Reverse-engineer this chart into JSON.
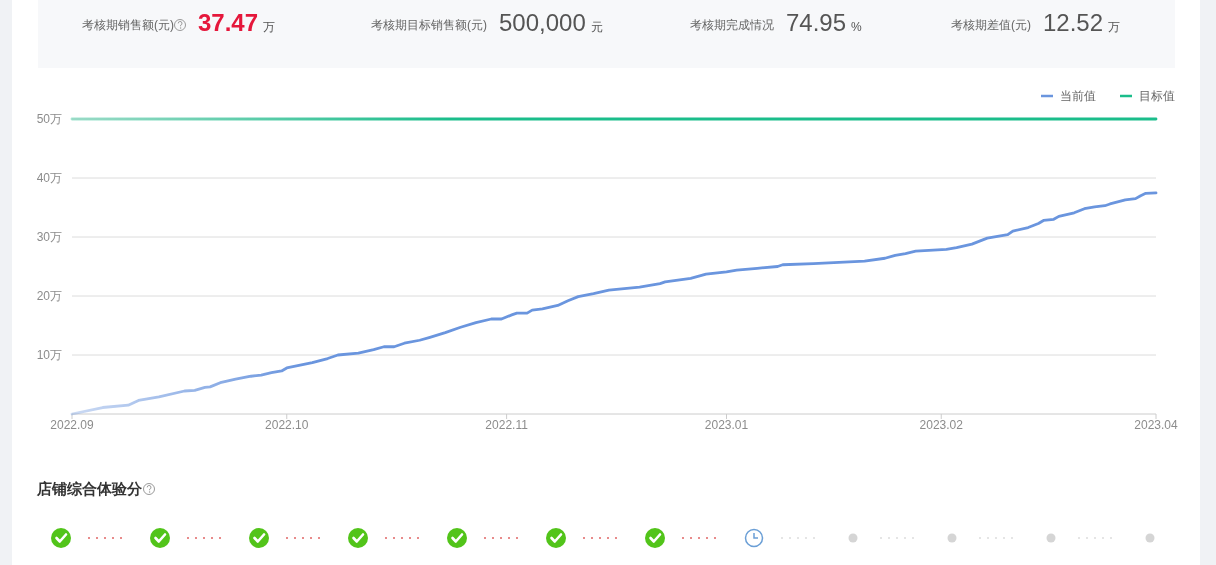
{
  "chart_data": [
    {
      "type": "other",
      "annotations": [
        "考核期销售额(元)",
        "37.47",
        "万",
        "考核期目标销售额(元)",
        "500,000",
        "元",
        "考核期完成情况",
        "74.95",
        "%",
        "考核期差值(元)",
        "12.52",
        "万"
      ]
    },
    {
      "type": "line",
      "x": [
        "2022-09-01",
        "2022-09-07",
        "2022-09-12",
        "2022-09-14",
        "2022-09-18",
        "2022-09-23",
        "2022-09-25",
        "2022-09-27",
        "2022-09-28",
        "2022-09-30",
        "2022-10-03",
        "2022-10-06",
        "2022-10-08",
        "2022-10-10",
        "2022-10-12",
        "2022-10-13",
        "2022-10-18",
        "2022-10-21",
        "2022-10-23",
        "2022-10-27",
        "2022-10-30",
        "2022-11-01",
        "2022-11-03",
        "2022-11-05",
        "2022-11-08",
        "2022-11-10",
        "2022-11-13",
        "2022-11-16",
        "2022-11-19",
        "2022-11-22",
        "2022-11-24",
        "2022-11-26",
        "2022-11-27",
        "2022-11-29",
        "2022-11-30",
        "2022-12-02",
        "2022-12-05",
        "2022-12-07",
        "2022-12-09",
        "2022-12-12",
        "2022-12-15",
        "2022-12-21",
        "2022-12-25",
        "2022-12-26",
        "2022-12-31",
        "2023-01-03",
        "2023-01-07",
        "2023-01-09",
        "2023-01-13",
        "2023-01-17",
        "2023-01-18",
        "2023-01-24",
        "2023-01-29",
        "2023-02-03",
        "2023-02-07",
        "2023-02-09",
        "2023-02-11",
        "2023-02-13",
        "2023-02-19",
        "2023-02-21",
        "2023-02-24",
        "2023-02-27",
        "2023-03-01",
        "2023-03-03",
        "2023-03-04",
        "2023-03-07",
        "2023-03-09",
        "2023-03-10",
        "2023-03-12",
        "2023-03-13",
        "2023-03-16",
        "2023-03-18",
        "2023-03-20",
        "2023-03-22",
        "2023-03-23",
        "2023-03-26",
        "2023-03-28",
        "2023-03-29",
        "2023-03-30",
        "2023-04-01"
      ],
      "series": [
        {
          "name": "当前值",
          "color": "#6a95de",
          "values": [
            0,
            1.1,
            1.5,
            2.3,
            2.9,
            3.9,
            4.0,
            4.5,
            4.6,
            5.3,
            5.9,
            6.4,
            6.6,
            7.0,
            7.3,
            7.8,
            8.7,
            9.4,
            10.0,
            10.3,
            10.9,
            11.4,
            11.4,
            12.0,
            12.5,
            13.0,
            13.8,
            14.7,
            15.5,
            16.1,
            16.1,
            16.8,
            17.1,
            17.1,
            17.6,
            17.8,
            18.4,
            19.2,
            19.9,
            20.4,
            21.0,
            21.5,
            22.1,
            22.4,
            23.0,
            23.7,
            24.1,
            24.4,
            24.7,
            25.0,
            25.3,
            25.5,
            25.7,
            25.9,
            26.4,
            26.9,
            27.2,
            27.6,
            27.9,
            28.2,
            28.8,
            29.8,
            30.1,
            30.4,
            31.0,
            31.6,
            32.3,
            32.8,
            33.0,
            33.5,
            34.1,
            34.8,
            35.1,
            35.3,
            35.6,
            36.3,
            36.5,
            37.0,
            37.4,
            37.47
          ]
        }
      ],
      "ref_lines": [
        {
          "axis": "y",
          "value": 50,
          "label": "目标值",
          "color": "#1bbd8b"
        }
      ],
      "xlim": [
        "2022-09-01",
        "2023-04-01"
      ],
      "xticks": [
        {
          "value": "2022-09-01",
          "label": "2022.09"
        },
        {
          "value": "2022-10-13",
          "label": "2022.10"
        },
        {
          "value": "2022-11-25",
          "label": "2022.11"
        },
        {
          "value": "2023-01-07",
          "label": "2023.01"
        },
        {
          "value": "2023-02-18",
          "label": "2023.02"
        },
        {
          "value": "2023-04-01",
          "label": "2023.04"
        }
      ],
      "ylim": [
        0,
        50
      ],
      "yticks": [
        {
          "value": 10,
          "label": "10万"
        },
        {
          "value": 20,
          "label": "20万"
        },
        {
          "value": 30,
          "label": "30万"
        },
        {
          "value": 40,
          "label": "40万"
        },
        {
          "value": 50,
          "label": "50万"
        }
      ],
      "grid": "y",
      "legend": "top right",
      "line_style": "solid"
    },
    {
      "type": "other",
      "title": "店铺综合体验分"
    }
  ]
}
